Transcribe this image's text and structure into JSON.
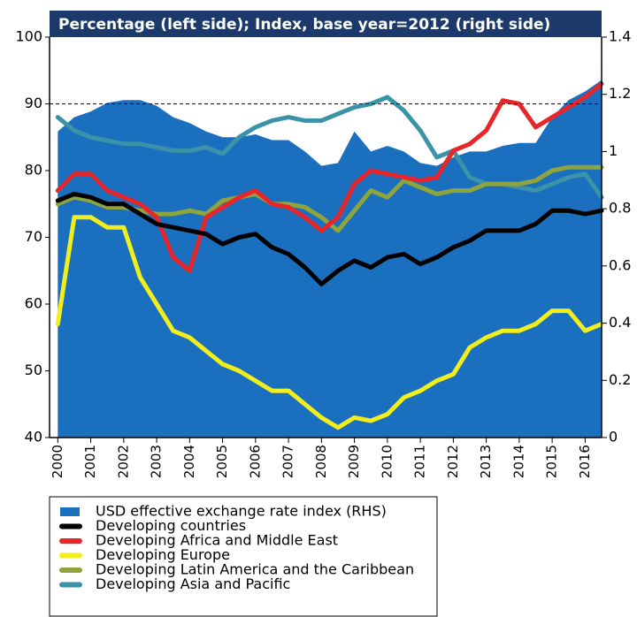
{
  "chart_data": {
    "type": "line",
    "title": "Percentage (left side); Index, base year=2012 (right side)",
    "x": [
      2000,
      2000.5,
      2001,
      2001.5,
      2002,
      2002.5,
      2003,
      2003.5,
      2004,
      2004.5,
      2005,
      2005.5,
      2006,
      2006.5,
      2007,
      2007.5,
      2008,
      2008.5,
      2009,
      2009.5,
      2010,
      2010.5,
      2011,
      2011.5,
      2012,
      2012.5,
      2013,
      2013.5,
      2014,
      2014.5,
      2015,
      2015.5,
      2016,
      2016.5
    ],
    "xlim": [
      1999.75,
      2016.5
    ],
    "xticks": [
      2000,
      2001,
      2002,
      2003,
      2004,
      2005,
      2006,
      2007,
      2008,
      2009,
      2010,
      2011,
      2012,
      2013,
      2014,
      2015,
      2016
    ],
    "ylim": [
      40,
      100
    ],
    "yticks": [
      40,
      50,
      60,
      70,
      80,
      90,
      100
    ],
    "y2lim": [
      0,
      1.4
    ],
    "y2ticks": [
      0,
      0.2,
      0.4,
      0.6,
      0.8,
      1,
      1.2,
      1.4
    ],
    "reference_line": 90,
    "series": [
      {
        "name": "USD effective exchange rate index (RHS)",
        "color": "#1a6fbf",
        "axis": "y2",
        "style": "area",
        "values": [
          1.07,
          1.12,
          1.14,
          1.17,
          1.18,
          1.18,
          1.16,
          1.12,
          1.1,
          1.07,
          1.05,
          1.05,
          1.06,
          1.04,
          1.04,
          1.0,
          0.95,
          0.96,
          1.07,
          1.0,
          1.02,
          1.0,
          0.96,
          0.95,
          0.98,
          1.0,
          1.0,
          1.02,
          1.03,
          1.03,
          1.12,
          1.18,
          1.21,
          1.25
        ]
      },
      {
        "name": "Developing countries",
        "color": "#000000",
        "values": [
          75.5,
          76.5,
          76,
          75,
          75,
          73.5,
          72,
          71.5,
          71,
          70.5,
          69,
          70,
          70.5,
          68.5,
          67.5,
          65.5,
          63,
          65,
          66.5,
          65.5,
          67,
          67.5,
          66,
          67,
          68.5,
          69.5,
          71,
          71,
          71,
          72,
          74,
          74,
          73.5,
          74
        ]
      },
      {
        "name": "Developing Africa and Middle East",
        "color": "#e8262a",
        "values": [
          77,
          79.5,
          79.5,
          77,
          76,
          75,
          73,
          67,
          65,
          73,
          74.5,
          76,
          77,
          75,
          74.5,
          73,
          71,
          73,
          78,
          80,
          79.5,
          79,
          78.5,
          79,
          83,
          84,
          86,
          90.5,
          90,
          86.5,
          88,
          89.5,
          91,
          93
        ]
      },
      {
        "name": "Developing Europe",
        "color": "#f2ee1c",
        "values": [
          57,
          73,
          73,
          71.5,
          71.5,
          64,
          60,
          56,
          55,
          53,
          51,
          50,
          48.5,
          47,
          47,
          45,
          43,
          41.5,
          43,
          42.5,
          43.5,
          46,
          47,
          48.5,
          49.5,
          53.5,
          55,
          56,
          56,
          57,
          59,
          59,
          56,
          57
        ]
      },
      {
        "name": "Developing Latin America and the Caribbean",
        "color": "#8ea43c",
        "values": [
          75,
          76,
          75.5,
          74.5,
          74.5,
          74,
          73.5,
          73.5,
          74,
          73.5,
          75.5,
          76,
          76.5,
          75,
          75,
          74.5,
          73,
          71,
          74,
          77,
          76,
          78.5,
          77.5,
          76.5,
          77,
          77,
          78,
          78,
          78,
          78.5,
          80,
          80.5,
          80.5,
          80.5
        ]
      },
      {
        "name": "Developing Asia and Pacific",
        "color": "#3a93a8",
        "values": [
          88,
          86,
          85,
          84.5,
          84,
          84,
          83.5,
          83,
          83,
          83.5,
          82.5,
          85,
          86.5,
          87.5,
          88,
          87.5,
          87.5,
          88.5,
          89.5,
          90,
          91,
          89,
          86,
          82,
          83,
          79,
          78,
          78,
          77.5,
          77,
          78,
          79,
          79.5,
          76
        ]
      }
    ]
  }
}
